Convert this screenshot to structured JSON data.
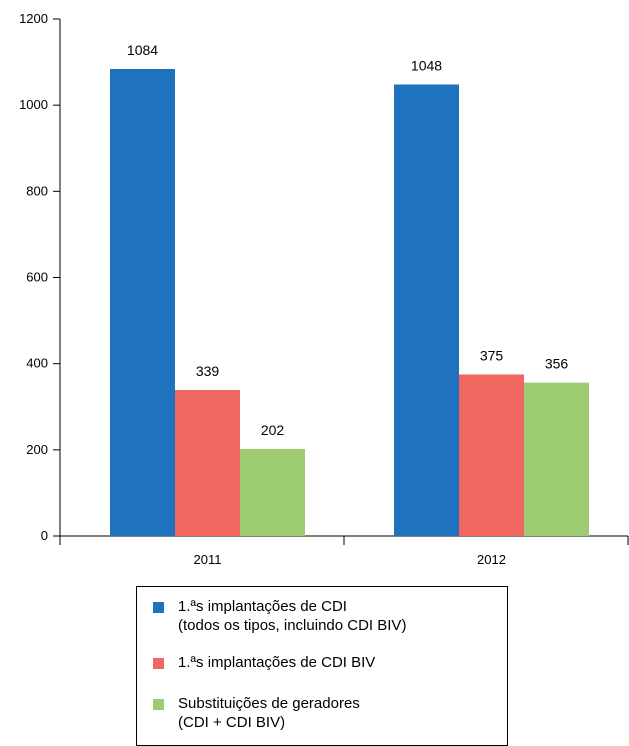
{
  "chart_data": {
    "type": "bar",
    "categories": [
      "2011",
      "2012"
    ],
    "series": [
      {
        "name": "1.ªs implantações de CDI (todos os tipos, incluindo CDI BIV)",
        "color": "#1f73be",
        "values": [
          1084,
          1048
        ]
      },
      {
        "name": "1.ªs implantações de CDI BIV",
        "color": "#f0675f",
        "values": [
          339,
          375
        ]
      },
      {
        "name": "Substituições de geradores (CDI + CDI BIV)",
        "color": "#9ccb72",
        "values": [
          202,
          356
        ]
      }
    ],
    "data_labels": [
      [
        "1084",
        "1048"
      ],
      [
        "339",
        "375"
      ],
      [
        "202",
        "356"
      ]
    ],
    "yticks": [
      0,
      200,
      400,
      600,
      800,
      1000,
      1200
    ],
    "ylim": [
      0,
      1200
    ],
    "grid": false,
    "legend_position": "bottom"
  },
  "legend": {
    "items": [
      {
        "lines": [
          "1.ªs implantações de CDI",
          "(todos os tipos, incluindo CDI BIV)"
        ],
        "color": "#1f73be"
      },
      {
        "lines": [
          "1.ªs implantações de CDI BIV"
        ],
        "color": "#f0675f"
      },
      {
        "lines": [
          "Substituições de geradores",
          "(CDI + CDI BIV)"
        ],
        "color": "#9ccb72"
      }
    ]
  }
}
